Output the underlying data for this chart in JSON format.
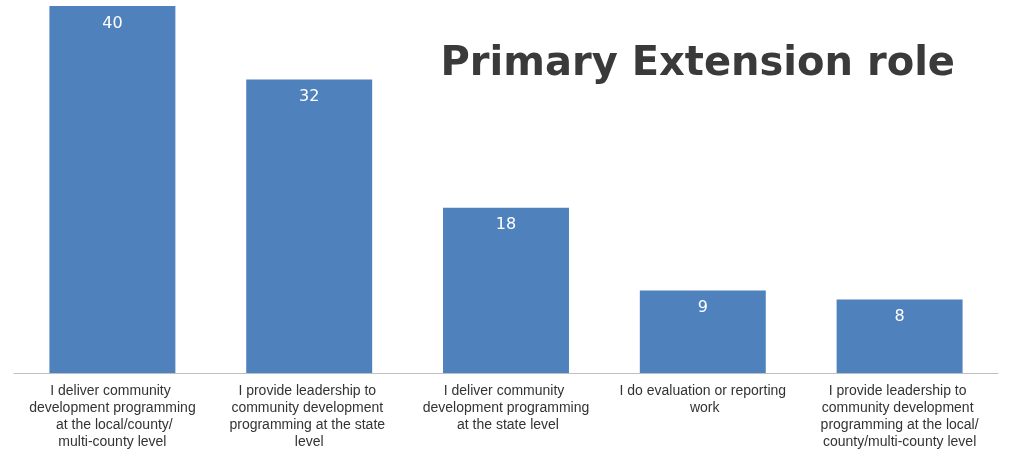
{
  "chart_data": {
    "type": "bar",
    "title": "Primary Extension role",
    "categories": [
      "I deliver community development programming at the local/county/multi-county level",
      "I provide leadership to community development programming at the state level",
      "I deliver community development programming at the state level",
      "I do evaluation or reporting work",
      "I provide leadership to community development programming at the local/county/multi-county level"
    ],
    "values": [
      40,
      32,
      18,
      9,
      8
    ],
    "color": "#4f81bd",
    "data_labels": true
  }
}
